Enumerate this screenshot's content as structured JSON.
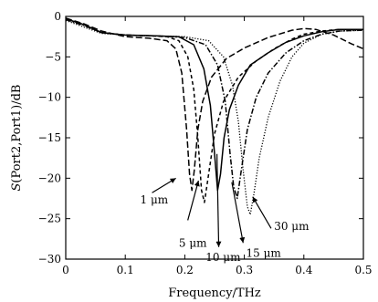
{
  "chart_data": {
    "type": "line",
    "title": "",
    "xlabel": "Frequency/THz",
    "ylabel_prefix": "S",
    "ylabel_rest": "(Port2,Port1)/dB",
    "xlim": [
      0,
      0.5
    ],
    "ylim": [
      -30,
      0
    ],
    "x_ticks": [
      0,
      0.1,
      0.2,
      0.3,
      0.4,
      0.5
    ],
    "x_tick_labels": [
      "0",
      "0.1",
      "0.2",
      "0.3",
      "0.4",
      "0.5"
    ],
    "y_ticks": [
      0,
      -5,
      -10,
      -15,
      -20,
      -25,
      -30
    ],
    "y_tick_labels": [
      "0",
      "−5",
      "−10",
      "−15",
      "−20",
      "−25",
      "−30"
    ],
    "grid": false,
    "series": [
      {
        "name": "1 μm",
        "style": "long-dash",
        "x": [
          0,
          0.03,
          0.06,
          0.1,
          0.14,
          0.17,
          0.185,
          0.195,
          0.203,
          0.208,
          0.212,
          0.216,
          0.222,
          0.23,
          0.245,
          0.27,
          0.3,
          0.34,
          0.38,
          0.4,
          0.42,
          0.45,
          0.48,
          0.5
        ],
        "y": [
          -0.2,
          -0.9,
          -1.8,
          -2.5,
          -2.7,
          -3.0,
          -4.0,
          -7.0,
          -14.0,
          -19.5,
          -21.5,
          -19.0,
          -14.0,
          -10.5,
          -7.5,
          -5.2,
          -3.9,
          -2.6,
          -1.7,
          -1.5,
          -1.6,
          -2.3,
          -3.4,
          -4.0
        ]
      },
      {
        "name": "5 μm",
        "style": "dash",
        "x": [
          0,
          0.03,
          0.06,
          0.1,
          0.14,
          0.17,
          0.19,
          0.205,
          0.215,
          0.222,
          0.228,
          0.233,
          0.24,
          0.25,
          0.265,
          0.29,
          0.32,
          0.35,
          0.38,
          0.4,
          0.43,
          0.46,
          0.5
        ],
        "y": [
          -0.3,
          -1.0,
          -2.0,
          -2.3,
          -2.4,
          -2.5,
          -3.0,
          -5.0,
          -9.0,
          -15.0,
          -21.5,
          -23.0,
          -19.5,
          -14.5,
          -10.5,
          -7.5,
          -5.5,
          -4.0,
          -2.8,
          -2.2,
          -1.8,
          -1.6,
          -1.6
        ]
      },
      {
        "name": "10 μm",
        "style": "solid",
        "x": [
          0,
          0.03,
          0.06,
          0.1,
          0.15,
          0.19,
          0.215,
          0.232,
          0.243,
          0.25,
          0.255,
          0.26,
          0.266,
          0.275,
          0.29,
          0.31,
          0.34,
          0.37,
          0.4,
          0.43,
          0.46,
          0.5
        ],
        "y": [
          -0.3,
          -1.0,
          -2.0,
          -2.3,
          -2.4,
          -2.5,
          -3.5,
          -6.5,
          -11.0,
          -17.0,
          -21.5,
          -19.5,
          -15.0,
          -11.5,
          -8.5,
          -6.0,
          -4.5,
          -3.2,
          -2.4,
          -1.9,
          -1.6,
          -1.6
        ]
      },
      {
        "name": "15 μm",
        "style": "dash-dot",
        "x": [
          0,
          0.03,
          0.06,
          0.1,
          0.15,
          0.2,
          0.235,
          0.255,
          0.268,
          0.276,
          0.282,
          0.288,
          0.295,
          0.305,
          0.32,
          0.34,
          0.37,
          0.4,
          0.43,
          0.46,
          0.5
        ],
        "y": [
          -0.4,
          -1.1,
          -2.0,
          -2.3,
          -2.4,
          -2.6,
          -3.5,
          -6.0,
          -10.5,
          -17.0,
          -21.0,
          -22.5,
          -19.0,
          -14.0,
          -10.0,
          -7.0,
          -4.5,
          -3.0,
          -2.2,
          -1.8,
          -1.7
        ]
      },
      {
        "name": "30 μm",
        "style": "dotted",
        "x": [
          0,
          0.03,
          0.06,
          0.1,
          0.15,
          0.2,
          0.24,
          0.265,
          0.28,
          0.29,
          0.298,
          0.305,
          0.31,
          0.316,
          0.325,
          0.34,
          0.36,
          0.38,
          0.4,
          0.43,
          0.46,
          0.5
        ],
        "y": [
          -0.5,
          -1.3,
          -2.1,
          -2.3,
          -2.4,
          -2.5,
          -3.0,
          -5.0,
          -8.5,
          -13.0,
          -19.0,
          -23.5,
          -24.5,
          -22.0,
          -17.5,
          -12.5,
          -8.0,
          -5.0,
          -3.3,
          -2.2,
          -1.8,
          -1.7
        ]
      }
    ],
    "annotations": [
      {
        "text": "1 μm",
        "series": "1 μm",
        "label_x": 0.125,
        "label_y": -23.1,
        "tail_x": 0.145,
        "tail_y": -21.8,
        "head_x": 0.185,
        "head_y": -20.0
      },
      {
        "text": "5 μm",
        "series": "5 μm",
        "label_x": 0.19,
        "label_y": -28.5,
        "tail_x": 0.205,
        "tail_y": -25.2,
        "head_x": 0.223,
        "head_y": -20.3
      },
      {
        "text": "10 μm",
        "series": "10 μm",
        "label_x": 0.235,
        "label_y": -30.2,
        "tail_x": 0.254,
        "tail_y": -17.0,
        "head_x": 0.257,
        "head_y": -28.5
      },
      {
        "text": "15 μm",
        "series": "15 μm",
        "label_x": 0.303,
        "label_y": -29.7,
        "tail_x": 0.279,
        "tail_y": -20.5,
        "head_x": 0.298,
        "head_y": -28.0
      },
      {
        "text": "30 μm",
        "series": "30 μm",
        "label_x": 0.35,
        "label_y": -26.4,
        "tail_x": 0.345,
        "tail_y": -26.2,
        "head_x": 0.314,
        "head_y": -22.3
      }
    ]
  }
}
